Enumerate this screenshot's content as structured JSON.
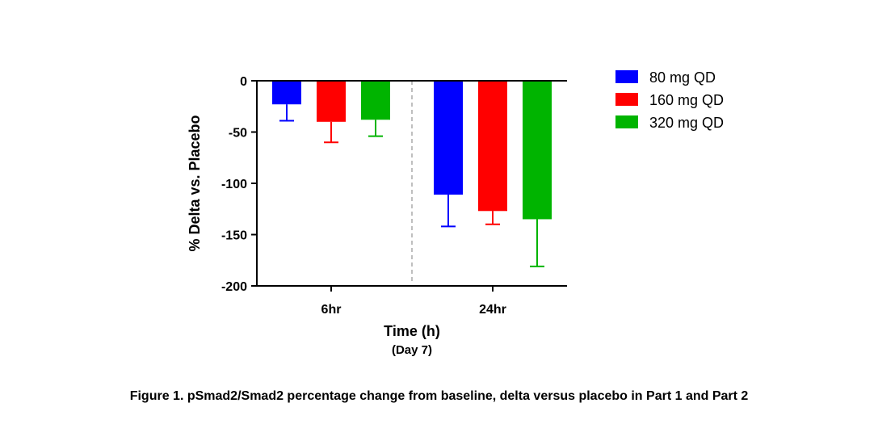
{
  "chart_data": {
    "type": "bar",
    "categories": [
      "6hr",
      "24hr"
    ],
    "series": [
      {
        "name": "80 mg QD",
        "color": "#0000FF",
        "values": [
          -23,
          -111
        ],
        "error_lower": [
          -39,
          -142
        ]
      },
      {
        "name": "160 mg QD",
        "color": "#FF0000",
        "values": [
          -40,
          -127
        ],
        "error_lower": [
          -60,
          -140
        ]
      },
      {
        "name": "320 mg QD",
        "color": "#00B400",
        "values": [
          -38,
          -135
        ],
        "error_lower": [
          -54,
          -181
        ]
      }
    ],
    "ylabel": "% Delta vs. Placebo",
    "xlabel": "Time (h)",
    "xlabel_sub": "(Day 7)",
    "ylim": [
      -200,
      0
    ],
    "yticks": [
      "0",
      "-50",
      "-100",
      "-150",
      "-200"
    ],
    "legend_position": "right",
    "grid": false,
    "separator_line": true
  },
  "caption": "Figure 1. pSmad2/Smad2 percentage change from baseline, delta versus placebo in Part 1 and Part 2"
}
